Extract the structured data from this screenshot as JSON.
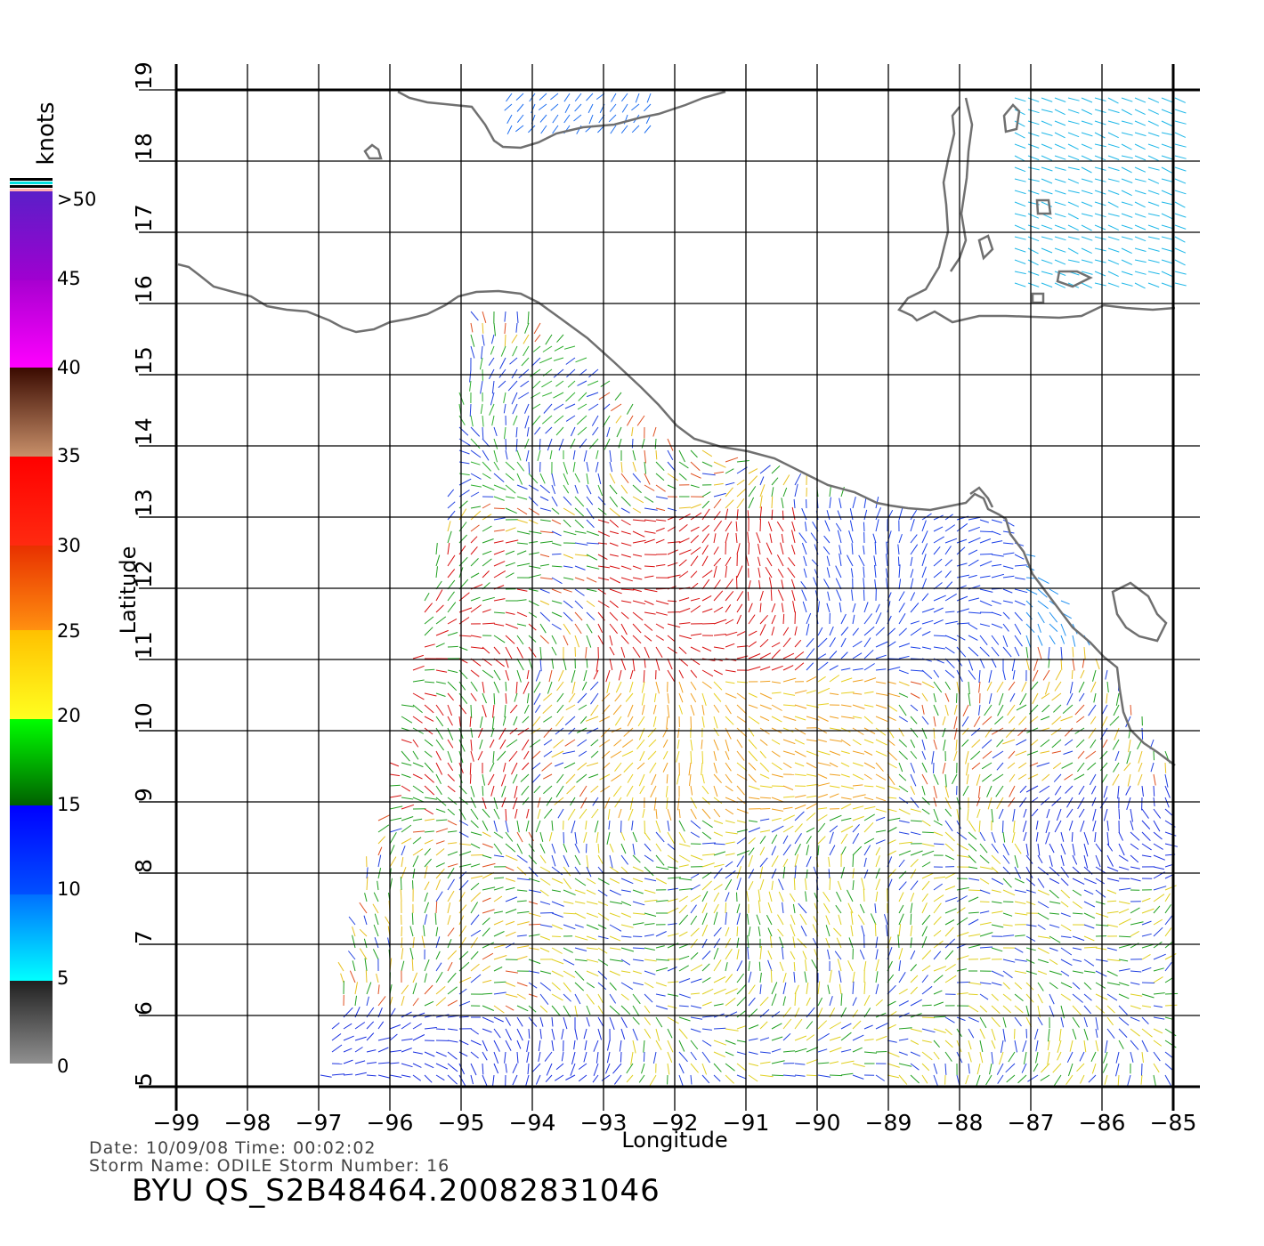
{
  "map": {
    "x_axis": {
      "label": "Longitude",
      "ticks": [
        "-99",
        "-98",
        "-97",
        "-96",
        "-95",
        "-94",
        "-93",
        "-92",
        "-91",
        "-90",
        "-89",
        "-88",
        "-87",
        "-86",
        "-85"
      ]
    },
    "y_axis": {
      "label": "Latitude",
      "ticks": [
        "5",
        "6",
        "7",
        "8",
        "9",
        "10",
        "11",
        "12",
        "13",
        "14",
        "15",
        "16",
        "17",
        "18",
        "19"
      ]
    }
  },
  "colorbar": {
    "title": "knots",
    "labels": [
      ">50",
      "45",
      "40",
      "35",
      "30",
      "25",
      "20",
      "15",
      "10",
      "5",
      "0"
    ]
  },
  "info": {
    "line1": "Date: 10/09/08   Time: 00:02:02",
    "line2": "Storm Name: ODILE   Storm Number: 16",
    "product": "BYU QS_S2B48464.20082831046"
  }
}
